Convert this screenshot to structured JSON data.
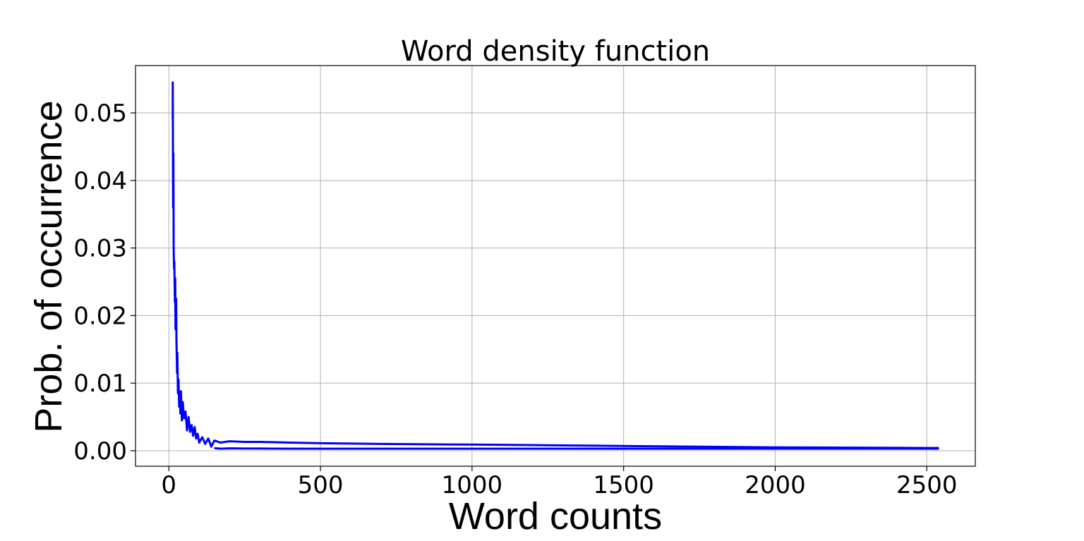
{
  "chart_data": {
    "type": "line",
    "title": "Word density function",
    "xlabel": "Word counts",
    "ylabel": "Prob. of occurrence",
    "xlim": [
      -110,
      2660
    ],
    "ylim": [
      -0.0023,
      0.057
    ],
    "xticks": [
      0,
      500,
      1000,
      1500,
      2000,
      2500
    ],
    "xtick_labels": [
      "0",
      "500",
      "1000",
      "1500",
      "2000",
      "2500"
    ],
    "yticks": [
      0.0,
      0.01,
      0.02,
      0.03,
      0.04,
      0.05
    ],
    "ytick_labels": [
      "0.00",
      "0.01",
      "0.02",
      "0.03",
      "0.04",
      "0.05"
    ],
    "grid": true,
    "series": [
      {
        "color": "#0000ff",
        "x": [
          13,
          13,
          14,
          15,
          16,
          17,
          18,
          20,
          21,
          22,
          24,
          25,
          27,
          28,
          30,
          32,
          34,
          36,
          38,
          40,
          43,
          46,
          50,
          55,
          60,
          65,
          70,
          75,
          80,
          85,
          90,
          95,
          100,
          110,
          120,
          130,
          140,
          150,
          170,
          200,
          250,
          300,
          400,
          500,
          700,
          1000,
          1500,
          2000,
          2500,
          2540
        ],
        "y": [
          0.049,
          0.0545,
          0.036,
          0.044,
          0.03,
          0.027,
          0.028,
          0.022,
          0.0255,
          0.018,
          0.0225,
          0.0165,
          0.0115,
          0.0145,
          0.0085,
          0.0105,
          0.0065,
          0.0085,
          0.0055,
          0.0088,
          0.0045,
          0.0072,
          0.0048,
          0.0058,
          0.003,
          0.005,
          0.0028,
          0.0038,
          0.0022,
          0.0035,
          0.0018,
          0.0025,
          0.0012,
          0.002,
          0.001,
          0.0018,
          0.0006,
          0.0015,
          0.0012,
          0.0014,
          0.0013,
          0.0013,
          0.0012,
          0.0011,
          0.001,
          0.0009,
          0.0007,
          0.0005,
          0.0004,
          0.0004
        ]
      }
    ]
  }
}
